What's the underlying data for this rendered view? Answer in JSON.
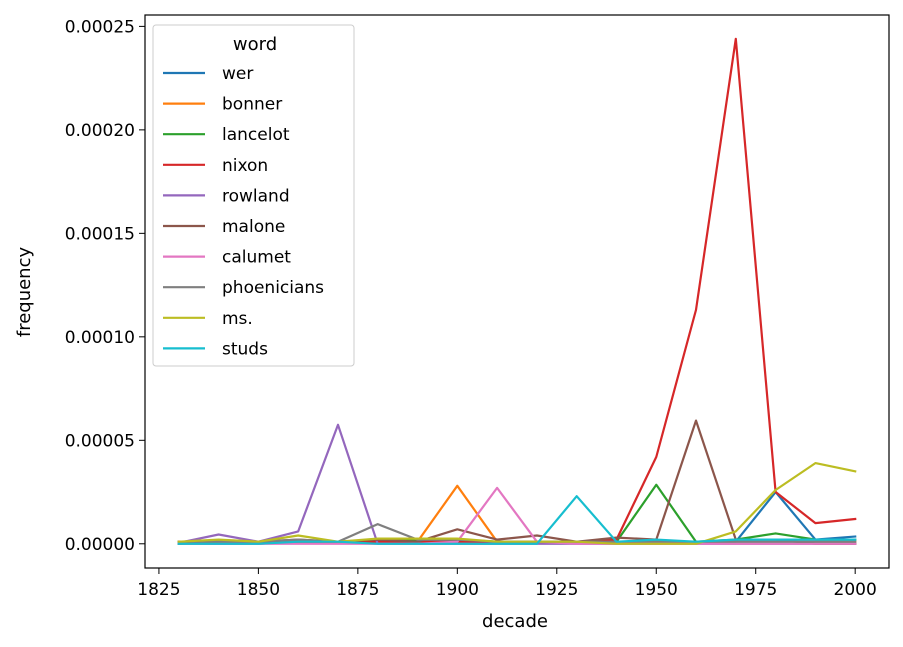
{
  "chart_data": {
    "type": "line",
    "title": "",
    "xlabel": "decade",
    "ylabel": "frequency",
    "xlim": [
      1821.5,
      2008.5
    ],
    "ylim": [
      -1.17e-05,
      0.0002555
    ],
    "x_ticks": [
      1825,
      1850,
      1875,
      1900,
      1925,
      1950,
      1975,
      2000
    ],
    "x_tick_labels": [
      "1825",
      "1850",
      "1875",
      "1900",
      "1925",
      "1950",
      "1975",
      "2000"
    ],
    "y_ticks": [
      0,
      5e-05,
      0.0001,
      0.00015,
      0.0002,
      0.00025
    ],
    "y_tick_labels": [
      "0.00000",
      "0.00005",
      "0.00010",
      "0.00015",
      "0.00020",
      "0.00025"
    ],
    "grid": false,
    "legend": {
      "title": "word",
      "position": "top-left"
    },
    "x": [
      1830,
      1840,
      1850,
      1860,
      1870,
      1880,
      1890,
      1900,
      1910,
      1920,
      1930,
      1940,
      1950,
      1960,
      1970,
      1980,
      1990,
      2000
    ],
    "series": [
      {
        "name": "wer",
        "color": "#1f77b4",
        "values": [
          0.0,
          0.0,
          0.0,
          1e-06,
          5e-07,
          5e-07,
          1e-06,
          1e-06,
          1e-06,
          1e-06,
          1e-06,
          1e-06,
          1e-06,
          1e-06,
          1e-06,
          2.5e-05,
          2e-06,
          3.5e-06
        ]
      },
      {
        "name": "bonner",
        "color": "#ff7f0e",
        "values": [
          1e-06,
          1e-06,
          1e-06,
          1e-06,
          1e-06,
          1e-06,
          1e-06,
          2.8e-05,
          1e-06,
          1e-06,
          1e-06,
          1e-06,
          1e-06,
          1e-06,
          1e-06,
          1e-06,
          1e-06,
          1e-06
        ]
      },
      {
        "name": "lancelot",
        "color": "#2ca02c",
        "values": [
          1e-06,
          1e-06,
          1e-06,
          1e-06,
          1e-06,
          2e-06,
          2e-06,
          2e-06,
          1e-06,
          1e-06,
          1e-06,
          1e-06,
          2.85e-05,
          1e-06,
          2e-06,
          5e-06,
          2e-06,
          2e-06
        ]
      },
      {
        "name": "nixon",
        "color": "#d62728",
        "values": [
          1e-06,
          1e-06,
          1e-06,
          1e-06,
          1e-06,
          1e-06,
          1e-06,
          1e-06,
          1e-06,
          1e-06,
          1e-06,
          2e-06,
          4.2e-05,
          0.000113,
          0.000244,
          2.5e-05,
          1e-05,
          1.2e-05
        ]
      },
      {
        "name": "rowland",
        "color": "#9467bd",
        "values": [
          5e-07,
          4.5e-06,
          1e-06,
          6e-06,
          5.75e-05,
          0.0,
          0.0,
          0.0,
          0.0,
          0.0,
          0.0,
          0.0,
          0.0,
          0.0,
          0.0,
          0.0,
          0.0,
          0.0
        ]
      },
      {
        "name": "malone",
        "color": "#8c564b",
        "values": [
          0.0,
          1e-06,
          1e-06,
          2e-06,
          1e-06,
          2e-06,
          1e-06,
          7e-06,
          2e-06,
          4e-06,
          1e-06,
          3e-06,
          2e-06,
          5.95e-05,
          2e-06,
          2e-06,
          0.0,
          0.0
        ]
      },
      {
        "name": "calumet",
        "color": "#e377c2",
        "values": [
          0.0,
          0.0,
          0.0,
          0.0,
          0.0,
          0.0,
          0.0,
          1e-06,
          2.7e-05,
          1e-06,
          0.0,
          0.0,
          0.0,
          0.0,
          0.0,
          0.0,
          0.0,
          0.0
        ]
      },
      {
        "name": "phoenicians",
        "color": "#7f7f7f",
        "values": [
          0.0,
          1e-06,
          1e-06,
          2e-06,
          1e-06,
          9.5e-06,
          2e-06,
          2e-06,
          1e-06,
          1e-06,
          1e-06,
          1e-06,
          1e-06,
          1e-06,
          1e-06,
          1e-06,
          1e-06,
          1e-06
        ]
      },
      {
        "name": "ms.",
        "color": "#bcbd22",
        "values": [
          1e-06,
          2e-06,
          1e-06,
          4e-06,
          1e-06,
          2.5e-06,
          2.5e-06,
          2.5e-06,
          1e-06,
          1e-06,
          1e-06,
          0.0,
          0.0,
          0.0,
          6e-06,
          2.6e-05,
          3.9e-05,
          3.5e-05
        ]
      },
      {
        "name": "studs",
        "color": "#17becf",
        "values": [
          0.0,
          0.0,
          0.0,
          1e-06,
          1e-06,
          0.0,
          0.0,
          0.0,
          0.0,
          0.0,
          2.3e-05,
          1e-06,
          2e-06,
          1e-06,
          2e-06,
          2e-06,
          2e-06,
          2e-06
        ]
      }
    ]
  }
}
